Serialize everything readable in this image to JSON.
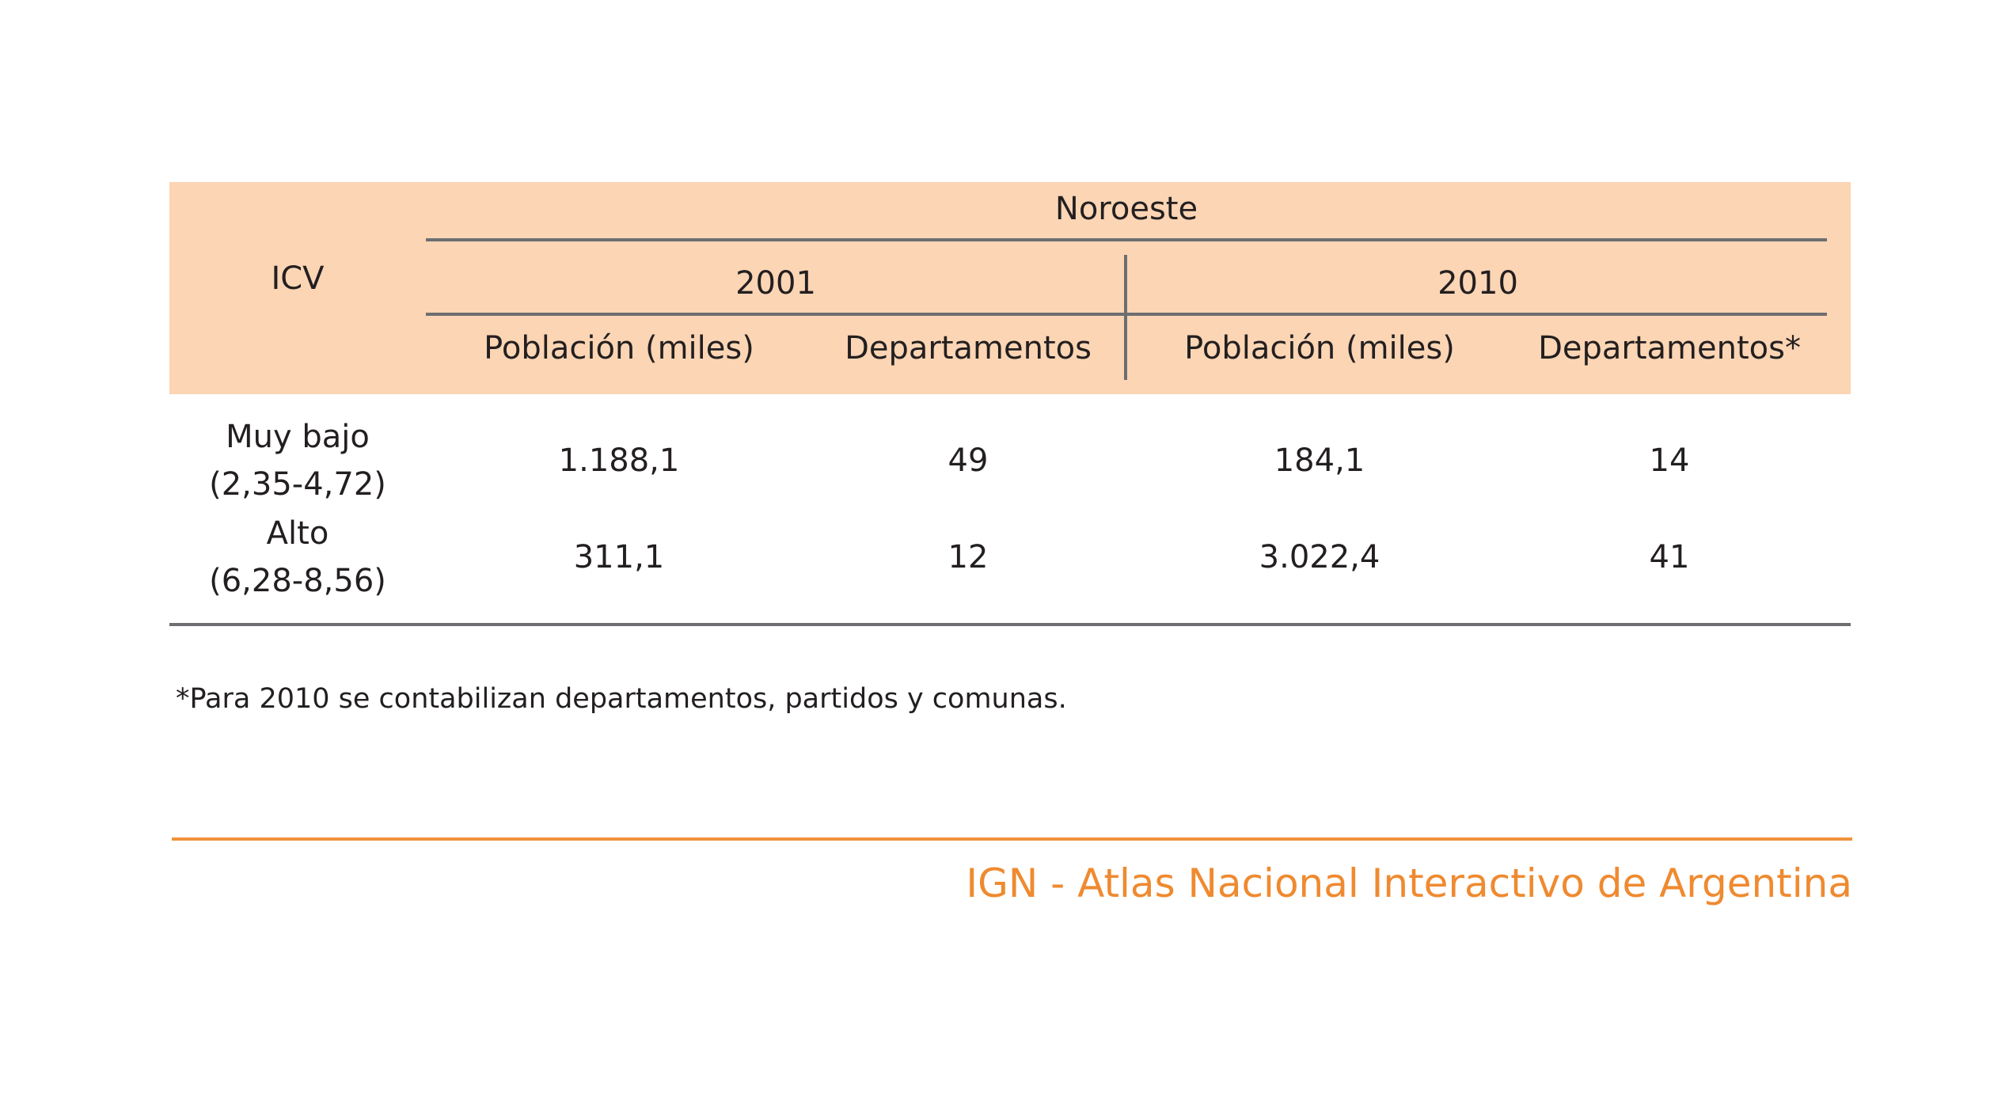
{
  "table": {
    "region": "Noroeste",
    "icv_header": "ICV",
    "years": [
      "2001",
      "2010"
    ],
    "column_headers": [
      "Población (miles)",
      "Departamentos",
      "Población (miles)",
      "Departamentos*"
    ],
    "rows": [
      {
        "label_line1": "Muy bajo",
        "label_line2": "(2,35-4,72)",
        "values": [
          "1.188,1",
          "49",
          "184,1",
          "14"
        ]
      },
      {
        "label_line1": "Alto",
        "label_line2": "(6,28-8,56)",
        "values": [
          "311,1",
          "12",
          "3.022,4",
          "41"
        ]
      }
    ]
  },
  "footnote": "*Para 2010 se contabilizan departamentos, partidos y comunas.",
  "footer": {
    "brand": "IGN - Atlas Nacional Interactivo de Argentina"
  },
  "colors": {
    "header_fill": "#fbd5b4",
    "rule_gray": "#6d6e71",
    "accent_orange": "#ef8a30"
  }
}
